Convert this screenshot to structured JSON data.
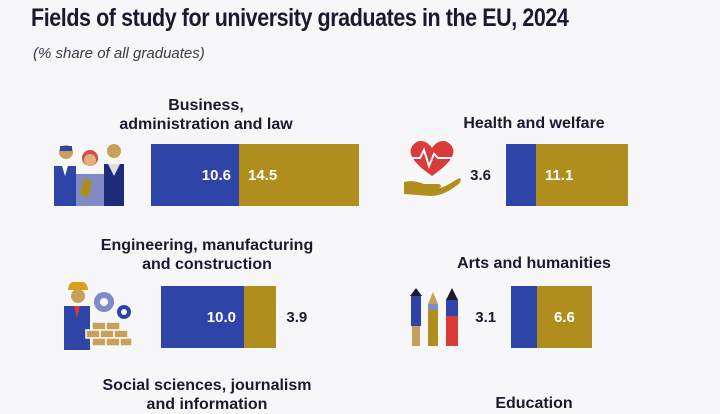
{
  "title": "Fields of study for university graduates in the EU, 2024",
  "subtitle": "(% share of all graduates)",
  "colors": {
    "men": "#2e44a6",
    "women": "#b08e1e",
    "background": "#f7f7f9"
  },
  "chart_data": {
    "type": "bar",
    "title": "Fields of study for university graduates in the EU, 2024",
    "subtitle": "(% share of all graduates)",
    "categories": [
      "Business, administration and law",
      "Health and welfare",
      "Engineering, manufacturing and construction",
      "Arts and humanities",
      "Social sciences, journalism and information",
      "Education"
    ],
    "series": [
      {
        "color": "#2e44a6",
        "values": [
          10.6,
          3.6,
          10.0,
          3.1,
          null,
          null
        ]
      },
      {
        "color": "#b08e1e",
        "values": [
          14.5,
          11.1,
          3.9,
          6.6,
          null,
          null
        ]
      }
    ],
    "labels": {
      "business": [
        "Business,",
        "administration and law"
      ],
      "health": [
        "Health and welfare"
      ],
      "engineering": [
        "Engineering, manufacturing",
        "and construction"
      ],
      "arts": [
        "Arts and humanities"
      ],
      "social": [
        "Social sciences, journalism",
        "and information"
      ],
      "education": [
        "Education"
      ]
    },
    "stacked": true,
    "legend": "none",
    "icons": [
      "business-people-icon",
      "heart-hand-icon",
      "engineer-gears-icon",
      "pens-brushes-icon"
    ]
  }
}
